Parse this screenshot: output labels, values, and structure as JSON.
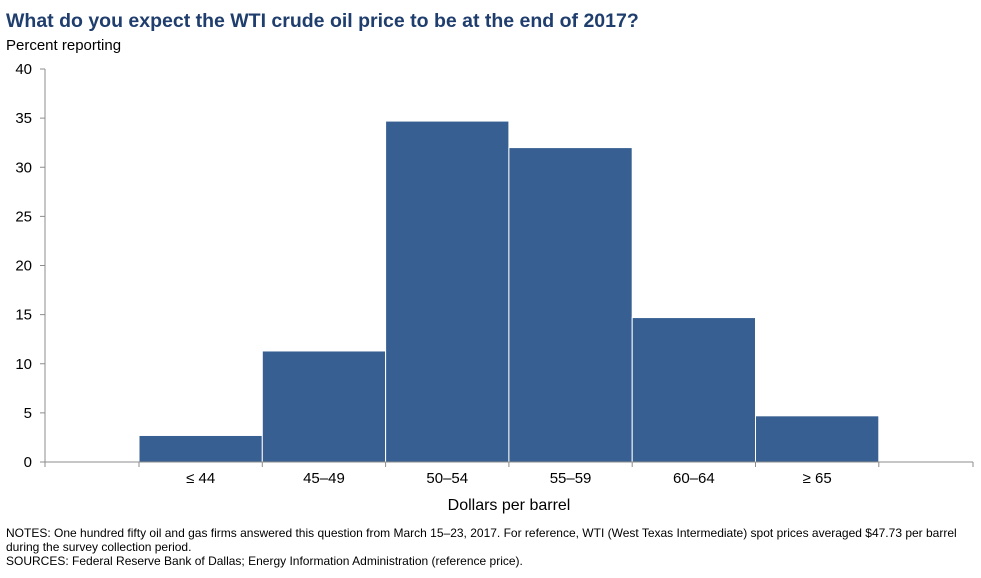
{
  "header": {
    "title": "What do you expect the WTI crude oil price to be at the end of 2017?",
    "y_axis_label": "Percent reporting"
  },
  "chart_data": {
    "type": "bar",
    "title": "What do you expect the WTI crude oil price to be at the end of 2017?",
    "xlabel": "Dollars per barrel",
    "ylabel": "Percent reporting",
    "categories": [
      "≤ 44",
      "45–49",
      "50–54",
      "55–59",
      "60–64",
      "≥ 65"
    ],
    "values": [
      2.7,
      11.3,
      34.7,
      32.0,
      14.7,
      4.7
    ],
    "ylim": [
      0,
      40
    ],
    "yticks": [
      "0",
      "5",
      "10",
      "15",
      "20",
      "25",
      "30",
      "35",
      "40"
    ],
    "bar_color": "#375f91",
    "grid": false,
    "legend": "none"
  },
  "footer": {
    "notes": "NOTES: One hundred fifty oil and gas firms answered this question from March 15–23, 2017. For reference, WTI (West Texas Intermediate) spot prices averaged $47.73 per barrel during the survey collection period.",
    "sources": "SOURCES: Federal Reserve Bank of Dallas; Energy Information Administration (reference price)."
  }
}
